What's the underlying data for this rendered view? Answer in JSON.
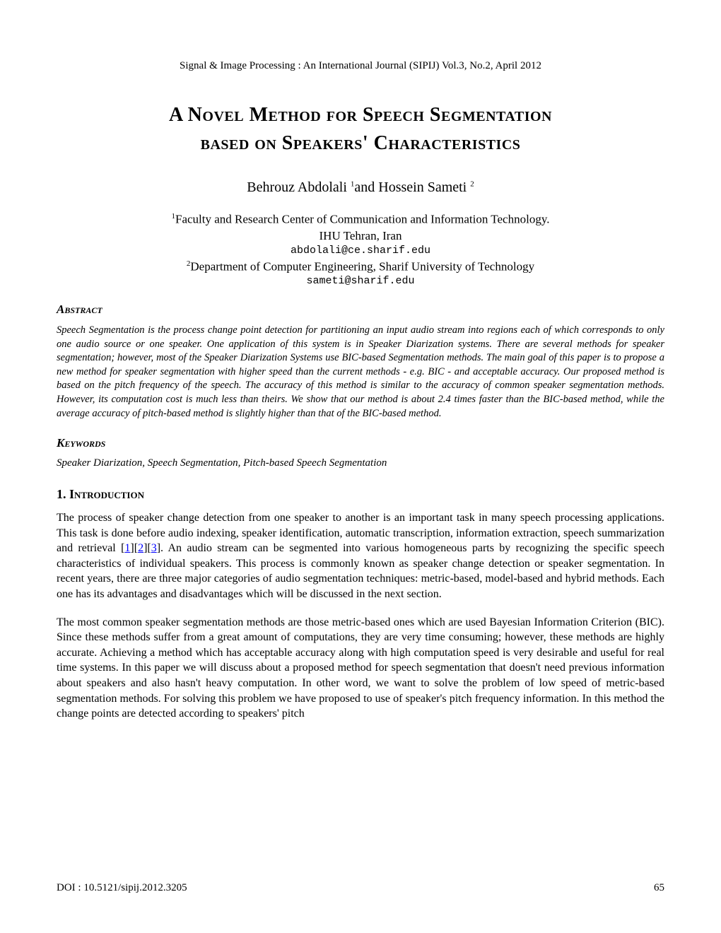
{
  "journal_header": "Signal & Image Processing : An International Journal (SIPIJ) Vol.3, No.2, April 2012",
  "title_line1": "A Novel Method for Speech Segmentation",
  "title_line2": "based on Speakers' Characteristics",
  "authors": "Behrouz Abdolali ",
  "authors_sup1": "1",
  "authors_mid": "and Hossein Sameti ",
  "authors_sup2": "2",
  "affiliation1_sup": "1",
  "affiliation1": "Faculty and Research Center of Communication and Information Technology.",
  "affiliation1_line2": "IHU Tehran, Iran",
  "email1": "abdolali@ce.sharif.edu",
  "affiliation2_sup": "2",
  "affiliation2": "Department of Computer Engineering, Sharif University of Technology",
  "email2": "sameti@sharif.edu",
  "abstract_heading": "Abstract",
  "abstract_text": "Speech Segmentation is the process change point detection for partitioning an input audio stream into regions each of which corresponds to only one audio source or one speaker. One application of this system is in Speaker Diarization systems. There are several methods for speaker segmentation; however, most of the Speaker Diarization Systems use BIC-based Segmentation methods. The main goal of this paper is to propose a new method for speaker segmentation with higher speed than the current methods - e.g. BIC - and acceptable accuracy. Our proposed method is based on the pitch frequency of the speech. The accuracy of this method is similar to the accuracy of common speaker segmentation methods. However, its computation cost is much less than theirs. We show that our method is about 2.4 times faster than the BIC-based method, while the average accuracy of pitch-based method is slightly higher than that of the BIC-based method.",
  "keywords_heading": "Keywords",
  "keywords_text": "Speaker Diarization, Speech Segmentation, Pitch-based Speech Segmentation",
  "intro_heading_num": "1. ",
  "intro_heading_word": "Introduction",
  "intro_p1_pre": "The process of speaker change detection from one speaker to another is an important task in many speech processing applications. This task is done before audio indexing, speaker identification, automatic transcription, information extraction, speech summarization and retrieval [",
  "ref1": "1",
  "ref_sep1": "][",
  "ref2": "2",
  "ref_sep2": "][",
  "ref3": "3",
  "intro_p1_post": "]. An audio stream can be segmented into various homogeneous parts by recognizing the specific speech characteristics of individual speakers. This process is commonly known as speaker change detection or speaker segmentation. In recent years, there are three major categories of audio segmentation techniques: metric-based, model-based and hybrid methods. Each one has its advantages and disadvantages which will be discussed in the next section.",
  "intro_p2": "The most common speaker segmentation methods are those metric-based ones which are used Bayesian Information Criterion (BIC). Since these methods suffer from a great amount of computations, they are very time consuming; however, these methods are highly accurate. Achieving a method which has acceptable accuracy along with high computation speed is very desirable and useful for real time systems. In this paper we will discuss about a proposed method for speech segmentation that doesn't need previous information about speakers and also hasn't heavy computation. In other word, we want to solve the problem of low speed of metric-based segmentation methods. For solving this problem we have proposed to use of speaker's pitch frequency information. In this method the change points are detected according to speakers' pitch",
  "doi": "DOI : 10.5121/sipij.2012.3205",
  "page_number": "65",
  "colors": {
    "text": "#000000",
    "background": "#ffffff",
    "link": "#0000ff"
  }
}
